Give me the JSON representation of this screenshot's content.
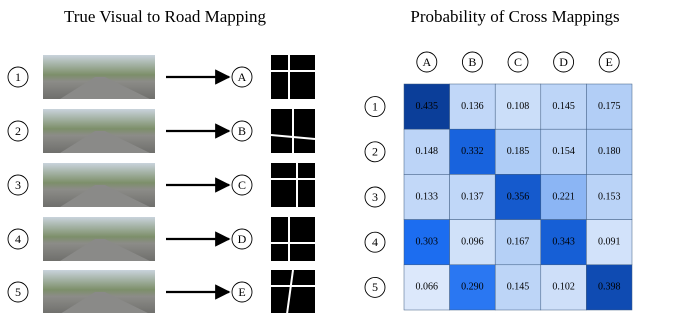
{
  "left": {
    "title": "True Visual to Road Mapping",
    "rows": [
      {
        "number": "1",
        "letter": "A"
      },
      {
        "number": "2",
        "letter": "B"
      },
      {
        "number": "3",
        "letter": "C"
      },
      {
        "number": "4",
        "letter": "D"
      },
      {
        "number": "5",
        "letter": "E"
      }
    ]
  },
  "right": {
    "title": "Probability of Cross Mappings",
    "columns": [
      "A",
      "B",
      "C",
      "D",
      "E"
    ],
    "rows": [
      {
        "label": "1",
        "cells": [
          "0.435",
          "0.136",
          "0.108",
          "0.145",
          "0.175"
        ]
      },
      {
        "label": "2",
        "cells": [
          "0.148",
          "0.332",
          "0.185",
          "0.154",
          "0.180"
        ]
      },
      {
        "label": "3",
        "cells": [
          "0.133",
          "0.137",
          "0.356",
          "0.221",
          "0.153"
        ]
      },
      {
        "label": "4",
        "cells": [
          "0.303",
          "0.096",
          "0.167",
          "0.343",
          "0.091"
        ]
      },
      {
        "label": "5",
        "cells": [
          "0.066",
          "0.290",
          "0.145",
          "0.102",
          "0.398"
        ]
      }
    ]
  }
}
